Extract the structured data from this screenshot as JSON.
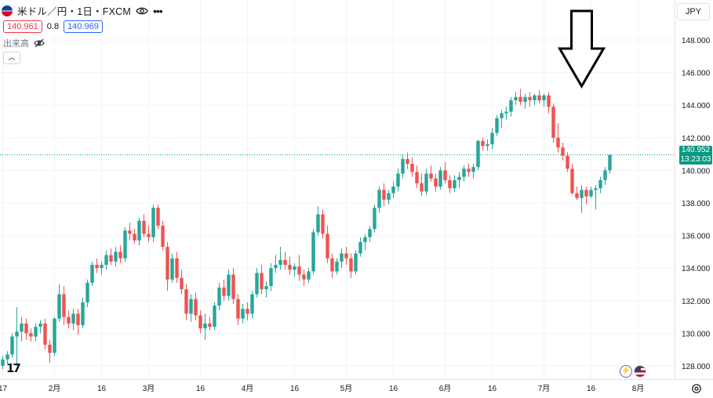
{
  "header": {
    "symbol_title": "米ドル／円・1日・FXCM",
    "more_label": "•••",
    "bid": "140.961",
    "spread": "0.8",
    "ask": "140.969",
    "volume_label": "出来高",
    "collapse_label": "︿"
  },
  "currency_button": "JPY",
  "last_price": {
    "value": "140.952",
    "countdown": "13:23:03"
  },
  "icons": [
    "usdjpy-flag-icon",
    "eye-icon",
    "more-icon",
    "volume-hidden-icon",
    "down-arrow-icon",
    "lightning-icon",
    "us-flag-icon",
    "settings-icon",
    "tradingview-logo"
  ],
  "colors": {
    "up": "#26a69a",
    "down": "#ef5350",
    "last_price_bg": "#089981",
    "grid": "#f0f3fa",
    "arrow": "#000000"
  },
  "chart_data": {
    "type": "candlestick",
    "pair": "USD/JPY",
    "interval": "1D",
    "y_axis": {
      "ticks": [
        128,
        130,
        132,
        134,
        136,
        138,
        140,
        142,
        144,
        146,
        148
      ],
      "labels": [
        "128.000",
        "130.000",
        "132.000",
        "134.000",
        "136.000",
        "138.000",
        "140.000",
        "142.000",
        "144.000",
        "146.000",
        "148.000"
      ],
      "range": [
        127.2,
        149.2
      ]
    },
    "x_axis": {
      "labels": [
        "17",
        "2月",
        "16",
        "3月",
        "16",
        "4月",
        "16",
        "5月",
        "16",
        "6月",
        "16",
        "7月",
        "16",
        "8月"
      ],
      "label_bar_index": [
        0,
        11,
        21,
        31,
        42,
        52,
        62,
        73,
        83,
        94,
        104,
        115,
        125,
        135
      ],
      "total_bars": 137
    },
    "candles_ohlc": [
      [
        128.0,
        128.6,
        127.8,
        128.4
      ],
      [
        128.4,
        128.9,
        128.1,
        128.7
      ],
      [
        128.7,
        130.0,
        128.5,
        129.8
      ],
      [
        129.8,
        131.6,
        128.0,
        130.1
      ],
      [
        130.1,
        131.0,
        129.5,
        130.6
      ],
      [
        130.6,
        130.9,
        129.6,
        130.0
      ],
      [
        130.0,
        130.3,
        129.5,
        129.8
      ],
      [
        129.8,
        130.6,
        129.5,
        130.4
      ],
      [
        130.4,
        130.8,
        130.0,
        130.6
      ],
      [
        130.6,
        130.9,
        129.0,
        129.3
      ],
      [
        129.3,
        129.6,
        128.2,
        128.8
      ],
      [
        128.8,
        131.0,
        128.6,
        130.9
      ],
      [
        130.9,
        133.0,
        130.7,
        132.4
      ],
      [
        132.4,
        132.9,
        130.5,
        131.0
      ],
      [
        131.0,
        131.4,
        130.3,
        130.6
      ],
      [
        130.6,
        131.5,
        130.2,
        131.2
      ],
      [
        131.2,
        131.5,
        129.9,
        130.5
      ],
      [
        130.5,
        132.2,
        130.3,
        131.9
      ],
      [
        131.9,
        133.3,
        131.6,
        133.1
      ],
      [
        133.1,
        134.4,
        132.9,
        134.2
      ],
      [
        134.2,
        134.6,
        133.7,
        134.0
      ],
      [
        134.0,
        134.4,
        133.6,
        134.2
      ],
      [
        134.2,
        135.1,
        133.9,
        134.8
      ],
      [
        134.8,
        135.2,
        134.2,
        134.4
      ],
      [
        134.4,
        135.3,
        134.1,
        135.0
      ],
      [
        135.0,
        135.4,
        134.3,
        134.6
      ],
      [
        134.6,
        136.5,
        134.4,
        136.3
      ],
      [
        136.3,
        136.8,
        135.7,
        136.1
      ],
      [
        136.1,
        136.4,
        135.5,
        135.7
      ],
      [
        135.7,
        137.1,
        135.4,
        136.9
      ],
      [
        136.9,
        137.3,
        135.9,
        136.1
      ],
      [
        136.1,
        136.6,
        135.6,
        135.9
      ],
      [
        135.9,
        137.9,
        135.6,
        137.7
      ],
      [
        137.7,
        137.9,
        136.4,
        136.6
      ],
      [
        136.6,
        136.9,
        135.1,
        135.3
      ],
      [
        135.3,
        135.6,
        132.6,
        133.3
      ],
      [
        133.3,
        134.9,
        133.1,
        134.6
      ],
      [
        134.6,
        135.0,
        133.1,
        133.4
      ],
      [
        133.4,
        133.9,
        132.4,
        132.7
      ],
      [
        132.7,
        133.0,
        130.8,
        131.2
      ],
      [
        131.2,
        132.4,
        130.7,
        132.1
      ],
      [
        132.1,
        132.5,
        130.8,
        131.1
      ],
      [
        131.1,
        131.4,
        130.0,
        130.3
      ],
      [
        130.3,
        131.2,
        129.6,
        130.6
      ],
      [
        130.6,
        131.0,
        130.2,
        130.4
      ],
      [
        130.4,
        131.9,
        130.2,
        131.7
      ],
      [
        131.7,
        133.1,
        131.4,
        132.8
      ],
      [
        132.8,
        133.3,
        132.0,
        132.3
      ],
      [
        132.3,
        133.9,
        132.0,
        133.6
      ],
      [
        133.6,
        134.0,
        131.8,
        132.1
      ],
      [
        132.1,
        132.4,
        130.5,
        130.9
      ],
      [
        130.9,
        131.8,
        130.6,
        131.5
      ],
      [
        131.5,
        131.9,
        130.8,
        131.2
      ],
      [
        131.2,
        132.6,
        130.9,
        132.4
      ],
      [
        132.4,
        134.0,
        132.2,
        133.7
      ],
      [
        133.7,
        134.2,
        132.4,
        132.7
      ],
      [
        132.7,
        133.2,
        132.2,
        132.9
      ],
      [
        132.9,
        134.3,
        132.6,
        134.0
      ],
      [
        134.0,
        134.8,
        133.7,
        134.2
      ],
      [
        134.2,
        135.3,
        133.9,
        134.5
      ],
      [
        134.5,
        135.0,
        133.9,
        134.2
      ],
      [
        134.2,
        134.7,
        133.6,
        133.9
      ],
      [
        133.9,
        134.3,
        133.5,
        134.1
      ],
      [
        134.1,
        134.8,
        133.2,
        133.6
      ],
      [
        133.6,
        133.9,
        132.9,
        133.3
      ],
      [
        133.3,
        134.0,
        133.1,
        133.8
      ],
      [
        133.8,
        136.4,
        133.6,
        136.2
      ],
      [
        136.2,
        137.8,
        136.0,
        137.3
      ],
      [
        137.3,
        137.6,
        135.8,
        136.1
      ],
      [
        136.1,
        136.6,
        134.3,
        134.6
      ],
      [
        134.6,
        134.9,
        133.4,
        133.8
      ],
      [
        133.8,
        134.6,
        133.6,
        134.4
      ],
      [
        134.4,
        135.2,
        134.0,
        134.9
      ],
      [
        134.9,
        135.3,
        134.2,
        134.6
      ],
      [
        134.6,
        134.9,
        133.4,
        133.8
      ],
      [
        133.8,
        135.1,
        133.6,
        134.9
      ],
      [
        134.9,
        135.9,
        134.7,
        135.6
      ],
      [
        135.6,
        136.1,
        135.1,
        135.9
      ],
      [
        135.9,
        136.6,
        135.6,
        136.4
      ],
      [
        136.4,
        137.9,
        136.2,
        137.7
      ],
      [
        137.7,
        139.0,
        137.4,
        138.8
      ],
      [
        138.8,
        139.2,
        137.8,
        138.2
      ],
      [
        138.2,
        138.8,
        137.9,
        138.6
      ],
      [
        138.6,
        139.3,
        138.3,
        139.0
      ],
      [
        139.0,
        140.1,
        138.7,
        139.8
      ],
      [
        139.8,
        141.0,
        139.5,
        140.7
      ],
      [
        140.7,
        141.1,
        140.1,
        140.4
      ],
      [
        140.4,
        140.8,
        139.6,
        139.9
      ],
      [
        139.9,
        140.3,
        138.9,
        139.2
      ],
      [
        139.2,
        139.8,
        138.4,
        138.7
      ],
      [
        138.7,
        140.1,
        138.5,
        139.8
      ],
      [
        139.8,
        140.3,
        139.3,
        139.5
      ],
      [
        139.5,
        139.8,
        138.7,
        139.0
      ],
      [
        139.0,
        140.2,
        138.8,
        140.0
      ],
      [
        140.0,
        140.5,
        139.2,
        139.4
      ],
      [
        139.4,
        139.7,
        138.6,
        138.9
      ],
      [
        138.9,
        139.7,
        138.7,
        139.4
      ],
      [
        139.4,
        139.9,
        138.9,
        139.6
      ],
      [
        139.6,
        140.3,
        139.3,
        140.1
      ],
      [
        140.1,
        140.4,
        139.6,
        139.9
      ],
      [
        139.9,
        140.4,
        139.5,
        140.2
      ],
      [
        140.2,
        141.9,
        140.0,
        141.8
      ],
      [
        141.8,
        142.0,
        141.2,
        141.5
      ],
      [
        141.5,
        141.9,
        141.2,
        141.6
      ],
      [
        141.6,
        142.6,
        141.3,
        142.3
      ],
      [
        142.3,
        143.4,
        142.1,
        143.2
      ],
      [
        143.2,
        143.7,
        142.6,
        143.5
      ],
      [
        143.5,
        143.9,
        143.1,
        143.6
      ],
      [
        143.6,
        144.5,
        143.3,
        144.3
      ],
      [
        144.3,
        144.8,
        144.0,
        144.5
      ],
      [
        144.5,
        145.0,
        144.0,
        144.2
      ],
      [
        144.2,
        144.7,
        143.8,
        144.5
      ],
      [
        144.5,
        144.8,
        143.9,
        144.3
      ],
      [
        144.3,
        144.7,
        144.0,
        144.6
      ],
      [
        144.6,
        144.9,
        144.1,
        144.3
      ],
      [
        144.3,
        144.7,
        143.9,
        144.6
      ],
      [
        144.6,
        144.8,
        143.5,
        143.9
      ],
      [
        143.9,
        144.1,
        141.7,
        142.0
      ],
      [
        142.0,
        142.9,
        141.1,
        141.4
      ],
      [
        141.4,
        141.7,
        140.6,
        140.9
      ],
      [
        140.9,
        141.1,
        139.9,
        140.1
      ],
      [
        140.1,
        140.4,
        138.5,
        138.6
      ],
      [
        138.6,
        139.0,
        138.2,
        138.3
      ],
      [
        138.3,
        139.1,
        137.4,
        138.8
      ],
      [
        138.8,
        139.0,
        137.9,
        138.4
      ],
      [
        138.4,
        139.0,
        138.3,
        138.8
      ],
      [
        138.8,
        139.1,
        137.6,
        138.9
      ],
      [
        138.9,
        139.6,
        138.6,
        139.4
      ],
      [
        139.4,
        140.2,
        139.1,
        140.0
      ],
      [
        140.0,
        141.0,
        139.8,
        140.952
      ]
    ],
    "last_value": 140.952,
    "annotation": {
      "type": "down-arrow",
      "at_bar_index": 123
    }
  }
}
